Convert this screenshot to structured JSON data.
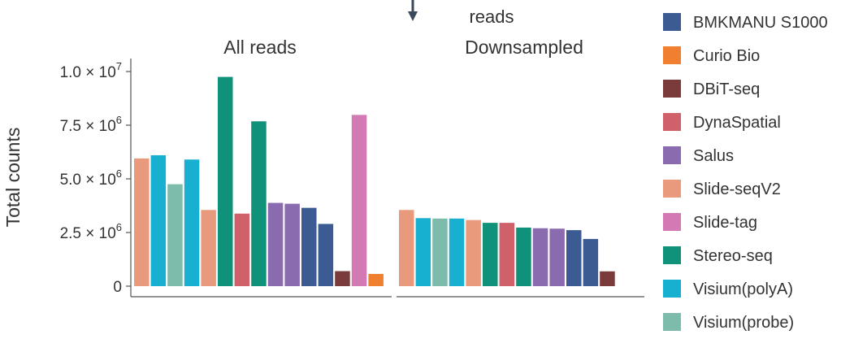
{
  "top_text": "reads",
  "panels": [
    {
      "title": "All reads"
    },
    {
      "title": "Downsampled"
    }
  ],
  "ylabel": "Total counts",
  "yticks": [
    {
      "value": 0,
      "mant": "0",
      "exp": ""
    },
    {
      "value": 2500000,
      "mant": "2.5 × 10",
      "exp": "6"
    },
    {
      "value": 5000000,
      "mant": "5.0 × 10",
      "exp": "6"
    },
    {
      "value": 7500000,
      "mant": "7.5 × 10",
      "exp": "6"
    },
    {
      "value": 10000000,
      "mant": "1.0 × 10",
      "exp": "7"
    }
  ],
  "legend": [
    {
      "label": "BMKMANU S1000",
      "color": "#3b5b92"
    },
    {
      "label": "Curio Bio",
      "color": "#f08030"
    },
    {
      "label": "DBiT-seq",
      "color": "#7b3b3b"
    },
    {
      "label": "DynaSpatial",
      "color": "#d0606a"
    },
    {
      "label": "Salus",
      "color": "#8b6bb0"
    },
    {
      "label": "Slide-seqV2",
      "color": "#e99a7d"
    },
    {
      "label": "Slide-tag",
      "color": "#d37ab4"
    },
    {
      "label": "Stereo-seq",
      "color": "#0f917a"
    },
    {
      "label": "Visium(polyA)",
      "color": "#17b0d0"
    },
    {
      "label": "Visium(probe)",
      "color": "#7dbcab"
    }
  ],
  "chart_data": {
    "type": "bar",
    "ylabel": "Total counts",
    "ylim": [
      0,
      10300000
    ],
    "legend_position": "right",
    "panels": [
      {
        "title": "All reads",
        "bars": [
          {
            "series": "Slide-seqV2",
            "value": 5950000
          },
          {
            "series": "Visium(polyA)",
            "value": 6100000
          },
          {
            "series": "Visium(probe)",
            "value": 4750000
          },
          {
            "series": "Visium(polyA)",
            "value": 5900000
          },
          {
            "series": "Slide-seqV2",
            "value": 3550000
          },
          {
            "series": "Stereo-seq",
            "value": 9750000
          },
          {
            "series": "DynaSpatial",
            "value": 3380000
          },
          {
            "series": "Stereo-seq",
            "value": 7680000
          },
          {
            "series": "Salus",
            "value": 3880000
          },
          {
            "series": "Salus",
            "value": 3840000
          },
          {
            "series": "BMKMANU S1000",
            "value": 3650000
          },
          {
            "series": "BMKMANU S1000",
            "value": 2900000
          },
          {
            "series": "DBiT-seq",
            "value": 700000
          },
          {
            "series": "Slide-tag",
            "value": 7980000
          },
          {
            "series": "Curio Bio",
            "value": 570000
          }
        ]
      },
      {
        "title": "Downsampled",
        "bars": [
          {
            "series": "Slide-seqV2",
            "value": 3550000
          },
          {
            "series": "Visium(polyA)",
            "value": 3170000
          },
          {
            "series": "Visium(probe)",
            "value": 3150000
          },
          {
            "series": "Visium(polyA)",
            "value": 3150000
          },
          {
            "series": "Slide-seqV2",
            "value": 3080000
          },
          {
            "series": "Stereo-seq",
            "value": 2950000
          },
          {
            "series": "DynaSpatial",
            "value": 2950000
          },
          {
            "series": "Stereo-seq",
            "value": 2730000
          },
          {
            "series": "Salus",
            "value": 2700000
          },
          {
            "series": "Salus",
            "value": 2680000
          },
          {
            "series": "BMKMANU S1000",
            "value": 2610000
          },
          {
            "series": "BMKMANU S1000",
            "value": 2200000
          },
          {
            "series": "DBiT-seq",
            "value": 690000
          }
        ]
      }
    ]
  }
}
